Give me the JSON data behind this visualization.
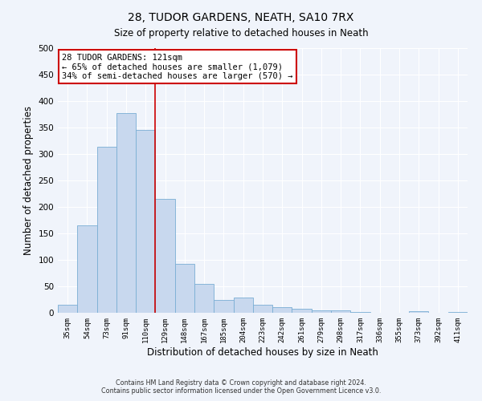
{
  "title": "28, TUDOR GARDENS, NEATH, SA10 7RX",
  "subtitle": "Size of property relative to detached houses in Neath",
  "xlabel": "Distribution of detached houses by size in Neath",
  "ylabel": "Number of detached properties",
  "bar_labels": [
    "35sqm",
    "54sqm",
    "73sqm",
    "91sqm",
    "110sqm",
    "129sqm",
    "148sqm",
    "167sqm",
    "185sqm",
    "204sqm",
    "223sqm",
    "242sqm",
    "261sqm",
    "279sqm",
    "298sqm",
    "317sqm",
    "336sqm",
    "355sqm",
    "373sqm",
    "392sqm",
    "411sqm"
  ],
  "bar_values": [
    15,
    165,
    313,
    377,
    345,
    215,
    93,
    55,
    24,
    29,
    15,
    10,
    7,
    5,
    5,
    1,
    0,
    0,
    3,
    0,
    1
  ],
  "bar_color": "#c8d8ee",
  "bar_edgecolor": "#7aaed4",
  "vline_x": 4.5,
  "vline_color": "#cc0000",
  "ylim": [
    0,
    500
  ],
  "yticks": [
    0,
    50,
    100,
    150,
    200,
    250,
    300,
    350,
    400,
    450,
    500
  ],
  "annotation_title": "28 TUDOR GARDENS: 121sqm",
  "annotation_line1": "← 65% of detached houses are smaller (1,079)",
  "annotation_line2": "34% of semi-detached houses are larger (570) →",
  "annotation_box_color": "#ffffff",
  "annotation_box_edgecolor": "#cc0000",
  "footer1": "Contains HM Land Registry data © Crown copyright and database right 2024.",
  "footer2": "Contains public sector information licensed under the Open Government Licence v3.0.",
  "bg_color": "#f0f4fb",
  "plot_bg_color": "#f0f4fb"
}
